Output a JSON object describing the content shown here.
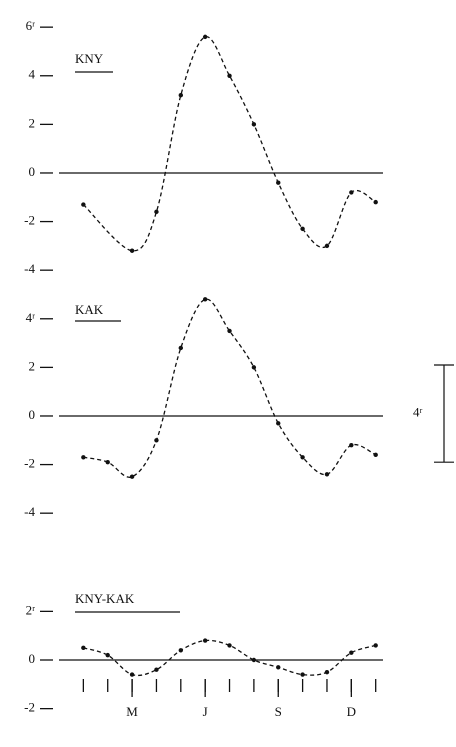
{
  "chart_data": [
    {
      "type": "line",
      "title": "KNY",
      "x": [
        0,
        2,
        3,
        4,
        5,
        6,
        7,
        8,
        9,
        10,
        11,
        12
      ],
      "values": [
        -1.3,
        -3.2,
        -1.6,
        3.2,
        5.6,
        4.0,
        2.0,
        -0.4,
        -2.3,
        -3.0,
        -0.8,
        -1.2
      ],
      "xlim": [
        -1,
        12.3
      ],
      "ylim": [
        -4.4,
        6.2
      ],
      "yticks": [
        {
          "value": 6,
          "label": "6ʳ"
        },
        4,
        2,
        0,
        -2,
        -4
      ],
      "color": "#111111",
      "dashed": true
    },
    {
      "type": "line",
      "title": "KAK",
      "x": [
        0,
        1,
        2,
        3,
        4,
        5,
        6,
        7,
        8,
        9,
        10,
        11,
        12
      ],
      "values": [
        -1.7,
        -1.9,
        -2.5,
        -1.0,
        2.8,
        4.8,
        3.5,
        2.0,
        -0.3,
        -1.7,
        -2.4,
        -1.2,
        -1.6
      ],
      "xlim": [
        -1,
        12.3
      ],
      "ylim": [
        -4.4,
        4.6
      ],
      "yticks": [
        {
          "value": 4,
          "label": "4ʳ"
        },
        2,
        0,
        -2,
        -4
      ],
      "color": "#111111",
      "dashed": true,
      "scale_bar": {
        "value": 4,
        "label": "4ʳ"
      }
    },
    {
      "type": "line",
      "title": "KNY-KAK",
      "x": [
        0,
        1,
        2,
        3,
        4,
        5,
        6,
        7,
        8,
        9,
        10,
        11,
        12
      ],
      "values": [
        0.5,
        0.2,
        -0.6,
        -0.4,
        0.4,
        0.8,
        0.6,
        0.0,
        -0.3,
        -0.6,
        -0.5,
        0.3,
        0.6
      ],
      "xlim": [
        -1,
        12.3
      ],
      "ylim": [
        -2.2,
        2.2
      ],
      "yticks": [
        {
          "value": 2,
          "label": "2ʳ"
        },
        0,
        -2
      ],
      "minor_xticks": [
        0,
        1,
        2,
        3,
        4,
        5,
        6,
        7,
        8,
        9,
        10,
        11,
        12
      ],
      "xticks": [
        {
          "value": 2,
          "label": "M"
        },
        {
          "value": 5,
          "label": "J"
        },
        {
          "value": 8,
          "label": "S"
        },
        {
          "value": 11,
          "label": "D"
        }
      ],
      "color": "#111111",
      "dashed": true
    }
  ]
}
